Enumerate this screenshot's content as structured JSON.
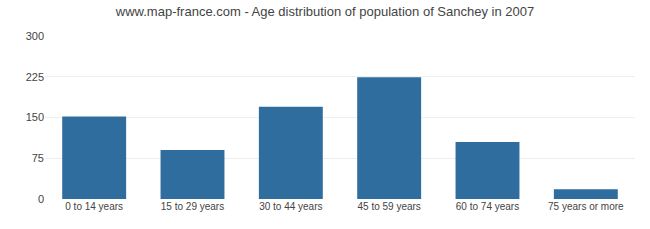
{
  "chart_data": {
    "type": "bar",
    "title": "www.map-france.com - Age distribution of population of Sanchey in 2007",
    "categories": [
      "0 to 14 years",
      "15 to 29 years",
      "30 to 44 years",
      "45 to 59 years",
      "60 to 74 years",
      "75 years or more"
    ],
    "values": [
      152,
      90,
      170,
      224,
      105,
      18
    ],
    "color": "#2e6d9e",
    "ylim": [
      0,
      300
    ],
    "yticks": [
      0,
      75,
      150,
      225,
      300
    ],
    "grid": true
  }
}
